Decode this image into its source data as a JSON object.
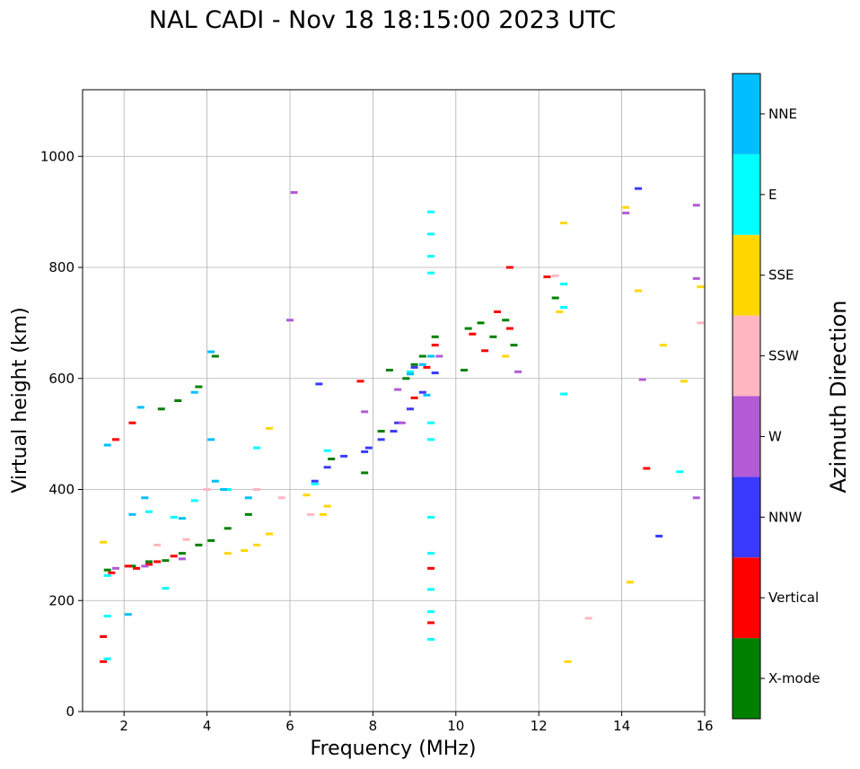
{
  "chart_data": {
    "type": "scatter",
    "title": "NAL CADI - Nov 18 18:15:00 2023 UTC",
    "xlabel": "Frequency (MHz)",
    "ylabel": "Virtual height (km)",
    "xlim": [
      1.0,
      16.0
    ],
    "ylim": [
      0,
      1120
    ],
    "xticks": [
      2,
      4,
      6,
      8,
      10,
      12,
      14,
      16
    ],
    "yticks": [
      0,
      200,
      400,
      600,
      800,
      1000
    ],
    "grid": true,
    "colorbar": {
      "label": "Azimuth Direction",
      "categories": [
        {
          "name": "X-mode",
          "color": "#008000"
        },
        {
          "name": "Vertical",
          "color": "#ff0000"
        },
        {
          "name": "NNW",
          "color": "#3a3aff"
        },
        {
          "name": "W",
          "color": "#b35ad6"
        },
        {
          "name": "SSW",
          "color": "#ffb6c1"
        },
        {
          "name": "SSE",
          "color": "#ffd700"
        },
        {
          "name": "E",
          "color": "#00ffff"
        },
        {
          "name": "NNE",
          "color": "#00bfff"
        }
      ]
    },
    "series": [
      {
        "name": "X-mode",
        "points": [
          [
            1.6,
            255
          ],
          [
            2.2,
            262
          ],
          [
            2.6,
            270
          ],
          [
            3.0,
            272
          ],
          [
            3.4,
            285
          ],
          [
            3.8,
            300
          ],
          [
            4.1,
            308
          ],
          [
            4.5,
            330
          ],
          [
            5.0,
            355
          ],
          [
            4.2,
            640
          ],
          [
            3.8,
            585
          ],
          [
            3.3,
            560
          ],
          [
            2.9,
            545
          ],
          [
            7.0,
            455
          ],
          [
            7.8,
            430
          ],
          [
            8.2,
            505
          ],
          [
            8.4,
            615
          ],
          [
            8.8,
            600
          ],
          [
            9.0,
            625
          ],
          [
            9.2,
            640
          ],
          [
            9.5,
            675
          ],
          [
            10.3,
            690
          ],
          [
            10.6,
            700
          ],
          [
            10.9,
            675
          ],
          [
            11.2,
            705
          ],
          [
            11.4,
            660
          ],
          [
            12.4,
            745
          ],
          [
            10.2,
            615
          ]
        ]
      },
      {
        "name": "Vertical",
        "points": [
          [
            1.5,
            90
          ],
          [
            1.5,
            135
          ],
          [
            1.7,
            250
          ],
          [
            2.1,
            262
          ],
          [
            2.3,
            258
          ],
          [
            2.6,
            265
          ],
          [
            2.8,
            270
          ],
          [
            3.2,
            280
          ],
          [
            2.2,
            520
          ],
          [
            1.8,
            490
          ],
          [
            7.7,
            595
          ],
          [
            9.0,
            565
          ],
          [
            9.3,
            620
          ],
          [
            9.5,
            660
          ],
          [
            10.4,
            680
          ],
          [
            10.7,
            650
          ],
          [
            11.0,
            720
          ],
          [
            11.3,
            690
          ],
          [
            11.3,
            800
          ],
          [
            14.6,
            438
          ],
          [
            9.4,
            258
          ],
          [
            9.4,
            160
          ],
          [
            12.2,
            783
          ]
        ]
      },
      {
        "name": "NNW",
        "points": [
          [
            6.6,
            415
          ],
          [
            6.9,
            440
          ],
          [
            7.3,
            460
          ],
          [
            7.9,
            475
          ],
          [
            8.2,
            490
          ],
          [
            8.6,
            520
          ],
          [
            8.9,
            545
          ],
          [
            9.2,
            575
          ],
          [
            9.5,
            610
          ],
          [
            6.7,
            590
          ],
          [
            7.8,
            468
          ],
          [
            8.5,
            505
          ],
          [
            14.4,
            942
          ],
          [
            14.9,
            316
          ],
          [
            9.0,
            620
          ]
        ]
      },
      {
        "name": "W",
        "points": [
          [
            1.8,
            258
          ],
          [
            2.5,
            262
          ],
          [
            3.4,
            275
          ],
          [
            6.1,
            935
          ],
          [
            6.0,
            705
          ],
          [
            7.8,
            540
          ],
          [
            8.7,
            520
          ],
          [
            8.6,
            580
          ],
          [
            15.8,
            912
          ],
          [
            15.8,
            780
          ],
          [
            15.8,
            385
          ],
          [
            14.1,
            898
          ],
          [
            14.5,
            598
          ],
          [
            9.6,
            640
          ],
          [
            11.5,
            612
          ]
        ]
      },
      {
        "name": "SSW",
        "points": [
          [
            2.8,
            300
          ],
          [
            3.5,
            310
          ],
          [
            4.0,
            400
          ],
          [
            5.2,
            400
          ],
          [
            5.8,
            385
          ],
          [
            6.5,
            355
          ],
          [
            12.4,
            785
          ],
          [
            13.2,
            168
          ],
          [
            15.9,
            700
          ]
        ]
      },
      {
        "name": "SSE",
        "points": [
          [
            1.5,
            305
          ],
          [
            4.5,
            285
          ],
          [
            4.9,
            290
          ],
          [
            5.2,
            300
          ],
          [
            5.5,
            320
          ],
          [
            6.4,
            390
          ],
          [
            6.9,
            370
          ],
          [
            6.8,
            355
          ],
          [
            12.6,
            880
          ],
          [
            12.5,
            720
          ],
          [
            14.1,
            908
          ],
          [
            14.4,
            758
          ],
          [
            15.0,
            660
          ],
          [
            15.5,
            595
          ],
          [
            15.9,
            765
          ],
          [
            14.2,
            233
          ],
          [
            12.7,
            90
          ],
          [
            11.2,
            640
          ],
          [
            5.5,
            510
          ]
        ]
      },
      {
        "name": "E",
        "points": [
          [
            1.6,
            245
          ],
          [
            1.6,
            172
          ],
          [
            1.6,
            95
          ],
          [
            2.6,
            360
          ],
          [
            3.2,
            350
          ],
          [
            3.7,
            380
          ],
          [
            4.5,
            400
          ],
          [
            5.2,
            475
          ],
          [
            6.6,
            410
          ],
          [
            6.9,
            470
          ],
          [
            8.9,
            612
          ],
          [
            9.4,
            900
          ],
          [
            9.4,
            860
          ],
          [
            9.4,
            820
          ],
          [
            9.4,
            790
          ],
          [
            9.4,
            520
          ],
          [
            9.4,
            490
          ],
          [
            9.4,
            350
          ],
          [
            9.4,
            285
          ],
          [
            9.4,
            220
          ],
          [
            9.4,
            180
          ],
          [
            9.4,
            130
          ],
          [
            12.6,
            770
          ],
          [
            12.6,
            728
          ],
          [
            12.6,
            572
          ],
          [
            15.4,
            432
          ],
          [
            3.0,
            222
          ]
        ]
      },
      {
        "name": "NNE",
        "points": [
          [
            1.6,
            480
          ],
          [
            2.1,
            175
          ],
          [
            2.2,
            355
          ],
          [
            2.5,
            385
          ],
          [
            3.4,
            348
          ],
          [
            3.7,
            575
          ],
          [
            4.1,
            490
          ],
          [
            4.2,
            415
          ],
          [
            4.4,
            400
          ],
          [
            5.0,
            385
          ],
          [
            8.9,
            608
          ],
          [
            9.2,
            625
          ],
          [
            9.3,
            570
          ],
          [
            9.4,
            640
          ],
          [
            2.4,
            548
          ],
          [
            4.1,
            648
          ]
        ]
      }
    ]
  }
}
